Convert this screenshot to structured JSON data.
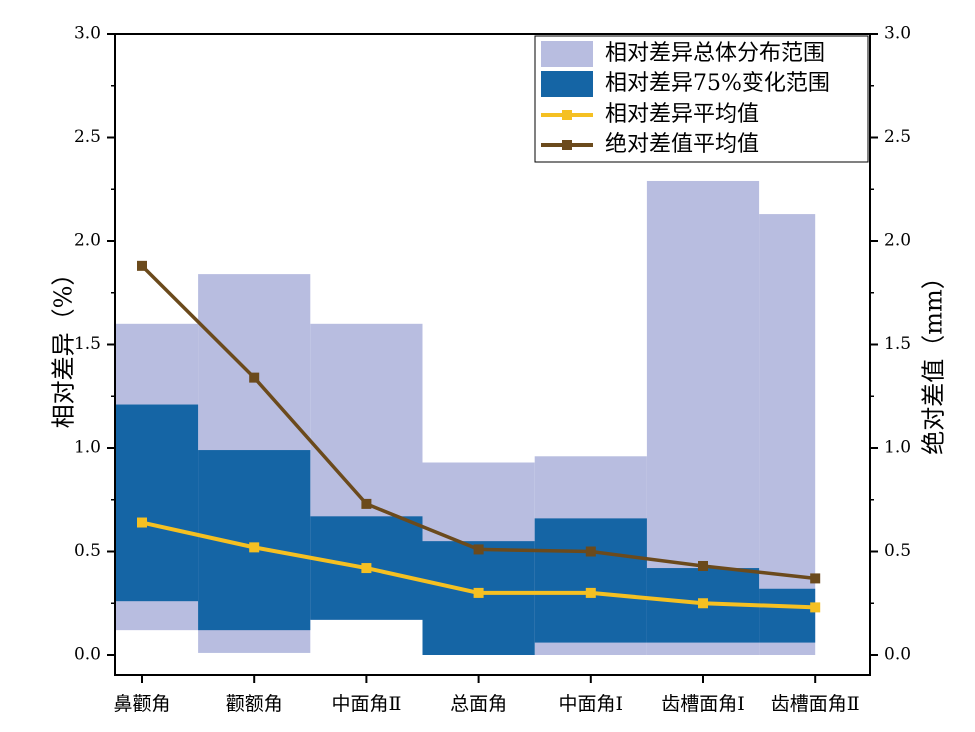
{
  "chart_data": {
    "type": "bar",
    "categories": [
      "鼻颧角",
      "颧额角",
      "中面角Ⅱ",
      "总面角",
      "中面角Ⅰ",
      "齿槽面角Ⅰ",
      "齿槽面角Ⅱ"
    ],
    "ylabel_left": "相对差异（%）",
    "ylabel_right": "绝对差值（mm）",
    "ylim_left": [
      0,
      3.0
    ],
    "ylim_right": [
      0,
      3.0
    ],
    "yticks": [
      "0.0",
      "0.5",
      "1.0",
      "1.5",
      "2.0",
      "2.5",
      "3.0"
    ],
    "grid": false,
    "legend_position": "top-right",
    "series": [
      {
        "name": "相对差异总体分布范围",
        "kind": "range",
        "color": "#b8bde0",
        "low": [
          0.12,
          0.01,
          0.17,
          0.0,
          0.0,
          0.0,
          0.0
        ],
        "high": [
          1.6,
          1.84,
          1.6,
          0.93,
          0.96,
          2.29,
          2.13
        ]
      },
      {
        "name": "相对差异75%变化范围",
        "kind": "range",
        "color": "#1565a5",
        "low": [
          0.26,
          0.12,
          0.17,
          0.0,
          0.06,
          0.06,
          0.06
        ],
        "high": [
          1.21,
          0.99,
          0.67,
          0.55,
          0.66,
          0.42,
          0.32
        ]
      },
      {
        "name": "相对差异平均值",
        "kind": "line",
        "color": "#f5c022",
        "values": [
          0.64,
          0.52,
          0.42,
          0.3,
          0.3,
          0.25,
          0.23
        ]
      },
      {
        "name": "绝对差值平均值",
        "kind": "line",
        "color": "#6b4a1c",
        "values": [
          1.88,
          1.34,
          0.73,
          0.51,
          0.5,
          0.43,
          0.37
        ]
      }
    ]
  }
}
